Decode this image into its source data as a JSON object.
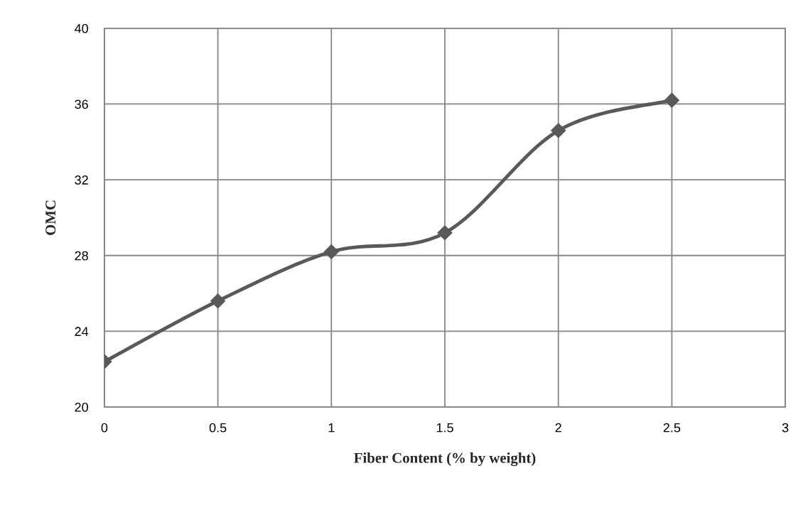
{
  "chart_data": {
    "type": "line",
    "xlabel": "Fiber Content (% by weight)",
    "ylabel": "OMC",
    "x": [
      0,
      0.5,
      1,
      1.5,
      2,
      2.5
    ],
    "series": [
      {
        "color": "#595959",
        "values": [
          22.4,
          25.6,
          28.2,
          29.2,
          34.6,
          36.2
        ]
      }
    ],
    "xlim": [
      0,
      3
    ],
    "xticks": [
      0,
      0.5,
      1,
      1.5,
      2,
      2.5,
      3
    ],
    "ylim": [
      20,
      40
    ],
    "yticks": [
      20,
      24,
      28,
      32,
      36,
      40
    ],
    "grid": true,
    "marker": "diamond",
    "line_style": "solid"
  }
}
